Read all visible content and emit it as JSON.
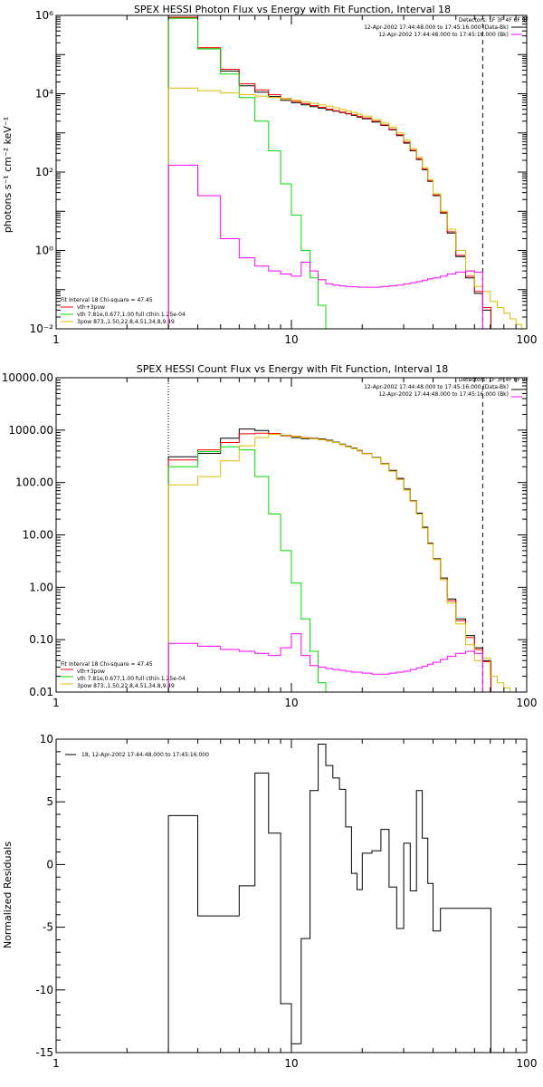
{
  "chart_data": [
    {
      "type": "line",
      "title": "SPEX HESSI Photon Flux vs Energy with Fit Function, Interval 18",
      "ylabel": "photons s⁻¹ cm⁻² keV⁻¹",
      "xlabel": "",
      "x_scale": "log",
      "y_scale": "log",
      "xlim": [
        1,
        100
      ],
      "ylim": [
        0.01,
        1000000
      ],
      "x_tick_labels": [
        "1",
        "10",
        "100"
      ],
      "y_tick_labels": [
        "10⁻²",
        "10⁰",
        "10²",
        "10⁴",
        "10⁶"
      ],
      "y_tick_values": [
        0.01,
        1,
        100,
        10000,
        1000000
      ],
      "vlines": [
        {
          "x": 3,
          "style": "dotted"
        },
        {
          "x": 65,
          "style": "dashed"
        }
      ],
      "legend_top": [
        "Detectors: 1F 3F 4F 6F 9F",
        "12-Apr-2002 17:44:48.000 to 17:45:16.000 (Data-Bk)",
        "12-Apr-2002 17:44:48.000 to 17:45:16.000 (Bk)"
      ],
      "legend_top_colors": [
        "",
        "#000000",
        "#ff00ff"
      ],
      "legend_bottom": [
        "Fit Interval 18   Chi-square = 47.45",
        "vth+3pow",
        "vth 7.81e,0.677,1.00  full cthin 1.25e-04",
        "3pow 873.,1.50,22.8,4.51,34.8,9.49"
      ],
      "legend_bottom_colors": [
        "",
        "#ff0000",
        "#00dd00",
        "#d8c000"
      ],
      "series": [
        {
          "color": "#000000",
          "step": true,
          "x": [
            3,
            4,
            5,
            6,
            7,
            8,
            9,
            10,
            11,
            12,
            13,
            14,
            15,
            16,
            17,
            18,
            19,
            20,
            22,
            24,
            26,
            28,
            30,
            32,
            34,
            36,
            38,
            40,
            43,
            46,
            50,
            55,
            60,
            65
          ],
          "y": [
            850000,
            140000,
            38000,
            16000,
            11000,
            8500,
            6800,
            5900,
            5200,
            4700,
            4300,
            3900,
            3600,
            3300,
            3050,
            2800,
            2550,
            2300,
            1900,
            1550,
            1200,
            850,
            550,
            350,
            210,
            115,
            58,
            25,
            9,
            2.8,
            0.7,
            0.2,
            0.08,
            0.03
          ]
        },
        {
          "color": "#ff0000",
          "step": true,
          "x": [
            3,
            4,
            5,
            6,
            7,
            8,
            9,
            10,
            11,
            12,
            13,
            14,
            15,
            16,
            17,
            18,
            19,
            20,
            22,
            24,
            26,
            28,
            30,
            32,
            34,
            36,
            38,
            40,
            43,
            46,
            50,
            55,
            60,
            65
          ],
          "y": [
            900000,
            150000,
            42000,
            18000,
            12500,
            9500,
            7500,
            6400,
            5600,
            5000,
            4500,
            4050,
            3700,
            3400,
            3150,
            2900,
            2650,
            2400,
            2000,
            1600,
            1250,
            900,
            580,
            360,
            220,
            120,
            60,
            26,
            9.5,
            3,
            0.75,
            0.22,
            0.09,
            0.035
          ]
        },
        {
          "color": "#00dd00",
          "step": true,
          "x": [
            3,
            4,
            5,
            6,
            7,
            8,
            9,
            10,
            11,
            12,
            13,
            14,
            15
          ],
          "y": [
            850000,
            140000,
            32000,
            8000,
            2000,
            350,
            50,
            8,
            1,
            0.2,
            0.04,
            0.01,
            0.01
          ]
        },
        {
          "color": "#d8c000",
          "step": true,
          "x": [
            3,
            4,
            5,
            6,
            7,
            8,
            9,
            10,
            11,
            12,
            13,
            14,
            15,
            16,
            17,
            18,
            19,
            20,
            22,
            24,
            26,
            28,
            30,
            32,
            34,
            36,
            38,
            40,
            43,
            46,
            50,
            55,
            60,
            65,
            70,
            75,
            80,
            85,
            90,
            95
          ],
          "y": [
            14000,
            12000,
            10500,
            9500,
            8700,
            8000,
            7400,
            6800,
            6200,
            5700,
            5200,
            4800,
            4400,
            4000,
            3650,
            3300,
            3000,
            2700,
            2200,
            1800,
            1400,
            1000,
            650,
            400,
            240,
            130,
            65,
            28,
            10,
            3.5,
            1,
            0.3,
            0.12,
            0.09,
            0.05,
            0.035,
            0.025,
            0.018,
            0.013,
            0.01
          ]
        },
        {
          "color": "#ff00ff",
          "step": true,
          "x": [
            3,
            4,
            5,
            6,
            7,
            8,
            9,
            10,
            11,
            12,
            13,
            14,
            15,
            16,
            17,
            18,
            19,
            20,
            22,
            24,
            26,
            28,
            30,
            32,
            34,
            36,
            38,
            40,
            43,
            46,
            50,
            55,
            60,
            65
          ],
          "y": [
            150,
            25,
            2,
            0.65,
            0.4,
            0.3,
            0.25,
            0.22,
            0.5,
            0.3,
            0.18,
            0.14,
            0.13,
            0.125,
            0.12,
            0.118,
            0.116,
            0.115,
            0.115,
            0.12,
            0.125,
            0.13,
            0.14,
            0.15,
            0.16,
            0.175,
            0.19,
            0.2,
            0.22,
            0.25,
            0.28,
            0.3,
            0.28,
            0.01
          ]
        }
      ]
    },
    {
      "type": "line",
      "title": "SPEX HESSI Count Flux vs Energy with Fit Function, Interval 18",
      "xlabel": "",
      "ylabel": "",
      "x_scale": "log",
      "y_scale": "log",
      "xlim": [
        1,
        100
      ],
      "ylim": [
        0.01,
        10000
      ],
      "x_tick_labels": [
        "1",
        "10",
        "100"
      ],
      "y_tick_labels": [
        "0.01",
        "0.10",
        "1.00",
        "10.00",
        "100.00",
        "1000.00",
        "10000.00"
      ],
      "y_tick_values": [
        0.01,
        0.1,
        1,
        10,
        100,
        1000,
        10000
      ],
      "vlines": [
        {
          "x": 3,
          "style": "dotted"
        },
        {
          "x": 65,
          "style": "dashed"
        }
      ],
      "legend_top": [
        "Detectors: 1F 3F 4F 6F 9F",
        "12-Apr-2002 17:44:48.000 to 17:45:16.000 (Data-Bk)",
        "12-Apr-2002 17:44:48.000 to 17:45:16.000 (Bk)"
      ],
      "legend_top_colors": [
        "",
        "#000000",
        "#ff00ff"
      ],
      "legend_bottom": [
        "Fit Interval 18   Chi-square = 47.45",
        "vth+3pow",
        "vth 7.81e,0.677,1.00  full cthin 1.25e-04",
        "3pow 873.,1.50,22.8,4.51,34.8,9.49"
      ],
      "legend_bottom_colors": [
        "",
        "#ff0000",
        "#00dd00",
        "#d8c000"
      ],
      "series": [
        {
          "color": "#000000",
          "step": true,
          "x": [
            3,
            4,
            5,
            6,
            7,
            8,
            9,
            10,
            11,
            12,
            13,
            14,
            15,
            16,
            17,
            18,
            19,
            20,
            22,
            24,
            26,
            28,
            30,
            32,
            34,
            36,
            38,
            40,
            43,
            46,
            50,
            55,
            60,
            65
          ],
          "y": [
            310,
            360,
            700,
            1050,
            980,
            850,
            780,
            720,
            690,
            700,
            680,
            640,
            590,
            540,
            490,
            450,
            410,
            360,
            300,
            230,
            170,
            120,
            75,
            45,
            26,
            14,
            7,
            3.5,
            1.5,
            0.6,
            0.25,
            0.12,
            0.07,
            0.04
          ]
        },
        {
          "color": "#ff0000",
          "step": true,
          "x": [
            3,
            4,
            5,
            6,
            7,
            8,
            9,
            10,
            11,
            12,
            13,
            14,
            15,
            16,
            17,
            18,
            19,
            20,
            22,
            24,
            26,
            28,
            30,
            32,
            34,
            36,
            38,
            40,
            43,
            46,
            50,
            55,
            60,
            65
          ],
          "y": [
            270,
            420,
            580,
            850,
            870,
            860,
            800,
            760,
            720,
            690,
            660,
            620,
            580,
            530,
            480,
            440,
            400,
            355,
            295,
            225,
            165,
            115,
            72,
            44,
            25,
            13.5,
            6.8,
            3.4,
            1.4,
            0.55,
            0.23,
            0.11,
            0.065,
            0.038
          ]
        },
        {
          "color": "#00dd00",
          "step": true,
          "x": [
            3,
            4,
            5,
            6,
            7,
            8,
            9,
            10,
            11,
            12,
            13,
            14,
            15
          ],
          "y": [
            200,
            390,
            480,
            420,
            130,
            25,
            5,
            1.2,
            0.25,
            0.06,
            0.015,
            0.01,
            0.01
          ]
        },
        {
          "color": "#d8c000",
          "step": true,
          "x": [
            3,
            4,
            5,
            6,
            7,
            8,
            9,
            10,
            11,
            12,
            13,
            14,
            15,
            16,
            17,
            18,
            19,
            20,
            22,
            24,
            26,
            28,
            30,
            32,
            34,
            36,
            38,
            40,
            43,
            46,
            50,
            55,
            60,
            65,
            70,
            75,
            80,
            85,
            90
          ],
          "y": [
            90,
            130,
            260,
            500,
            720,
            830,
            790,
            750,
            710,
            690,
            660,
            620,
            580,
            530,
            480,
            440,
            400,
            355,
            295,
            225,
            165,
            115,
            72,
            44,
            25,
            13.5,
            6.8,
            3.4,
            1.4,
            0.5,
            0.2,
            0.08,
            0.04,
            0.045,
            0.02,
            0.015,
            0.012,
            0.01,
            0.01
          ]
        },
        {
          "color": "#ff00ff",
          "step": true,
          "x": [
            3,
            4,
            5,
            6,
            7,
            8,
            9,
            10,
            11,
            12,
            13,
            14,
            15,
            16,
            17,
            18,
            19,
            20,
            22,
            24,
            26,
            28,
            30,
            32,
            34,
            36,
            38,
            40,
            43,
            46,
            50,
            55,
            60,
            65
          ],
          "y": [
            0.085,
            0.075,
            0.065,
            0.06,
            0.055,
            0.05,
            0.07,
            0.13,
            0.05,
            0.032,
            0.03,
            0.028,
            0.027,
            0.026,
            0.025,
            0.024,
            0.024,
            0.023,
            0.022,
            0.022,
            0.023,
            0.024,
            0.025,
            0.027,
            0.029,
            0.031,
            0.034,
            0.037,
            0.042,
            0.048,
            0.055,
            0.06,
            0.055,
            0.01
          ]
        }
      ]
    },
    {
      "type": "line",
      "title": "",
      "xlabel": "",
      "ylabel": "Normalized Residuals",
      "x_scale": "log",
      "y_scale": "linear",
      "xlim": [
        1,
        100
      ],
      "ylim": [
        -15,
        10
      ],
      "x_tick_labels": [
        "1",
        "10",
        "100"
      ],
      "y_tick_labels": [
        "-15",
        "-10",
        "-5",
        "0",
        "5",
        "10"
      ],
      "y_tick_values": [
        -15,
        -10,
        -5,
        0,
        5,
        10
      ],
      "legend": "18, 12-Apr-2002 17:44:48.000 to 17:45:16.000",
      "series": [
        {
          "color": "#000000",
          "step": true,
          "x": [
            3,
            4,
            5,
            6,
            7,
            8,
            9,
            10,
            11,
            12,
            13,
            14,
            15,
            16,
            17,
            18,
            19,
            20,
            22,
            24,
            26,
            28,
            30,
            32,
            34,
            36,
            38,
            40,
            43,
            46,
            50,
            55,
            60,
            65
          ],
          "y": [
            3.9,
            -4.1,
            -4.1,
            -1.7,
            7.3,
            2.5,
            -11.1,
            -14.3,
            -5.9,
            5.9,
            9.6,
            7.9,
            6.9,
            6,
            3,
            -0.7,
            -2,
            0.9,
            1.1,
            2.8,
            -1.8,
            -5.1,
            1.7,
            -2.1,
            5.9,
            2.1,
            -1.5,
            -5.3,
            -3.5,
            -3.5,
            -3.5,
            -3.5,
            -3.5,
            -3.5
          ]
        }
      ]
    }
  ]
}
